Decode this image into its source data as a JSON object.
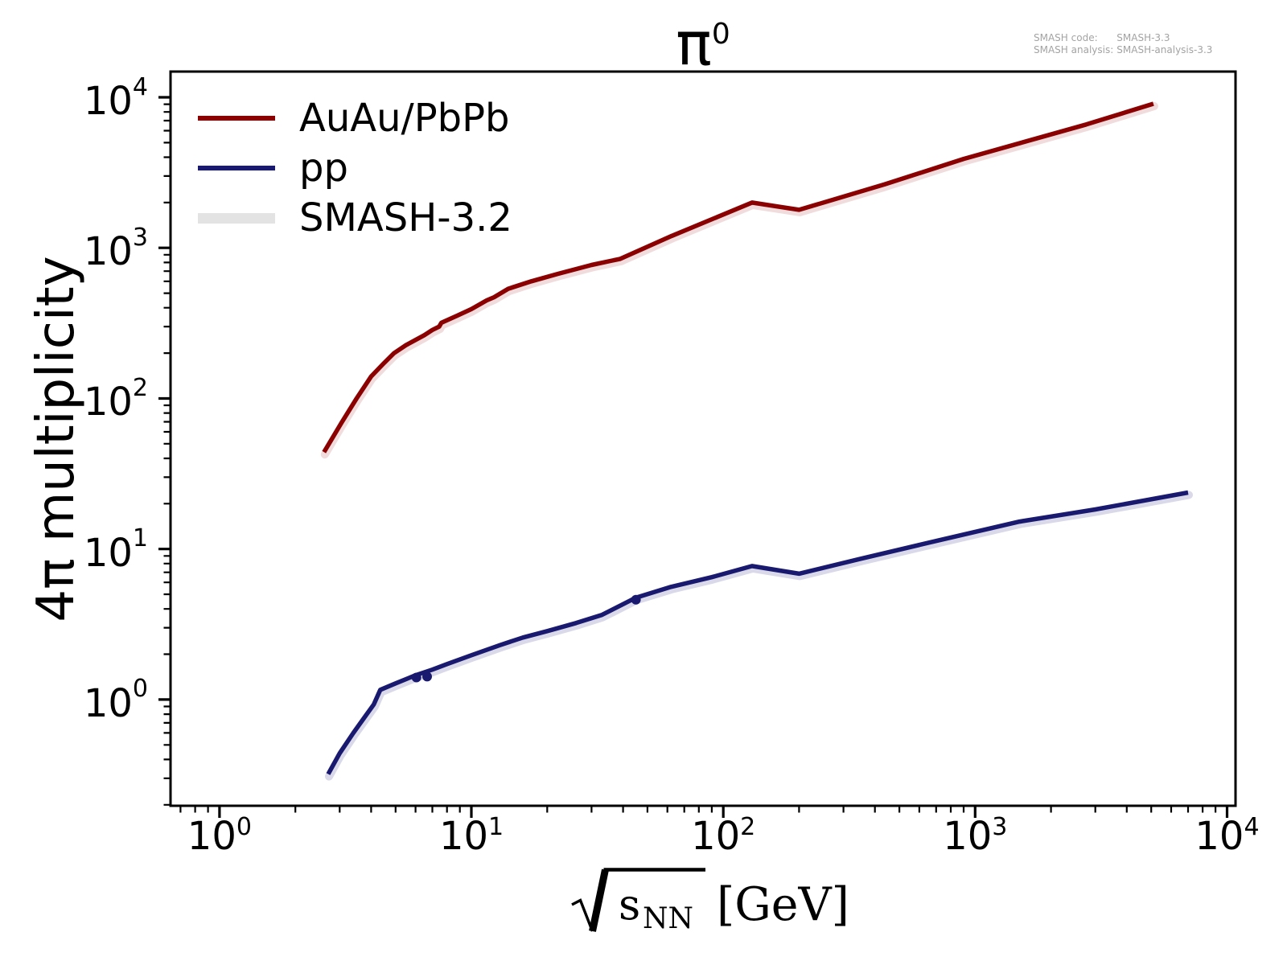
{
  "title": {
    "base": "π",
    "sup": "0"
  },
  "annotation": {
    "rows": [
      {
        "label": "SMASH code:",
        "value": "SMASH-3.3"
      },
      {
        "label": "SMASH analysis:",
        "value": "SMASH-analysis-3.3"
      }
    ]
  },
  "axis_labels": {
    "y": "4π multiplicity",
    "x_radicand": "s",
    "x_sub": "NN",
    "x_unit": "[GeV]"
  },
  "legend": {
    "items": [
      {
        "label": "AuAu/PbPb",
        "color": "#8b0000",
        "swatch": "line"
      },
      {
        "label": "pp",
        "color": "#191970",
        "swatch": "line"
      },
      {
        "label": "SMASH-3.2",
        "color": "#e3e3e3",
        "swatch": "band"
      }
    ]
  },
  "chart_data": {
    "type": "line",
    "xscale": "log",
    "yscale": "log",
    "xlim": [
      0.639,
      10806
    ],
    "ylim": [
      0.197,
      14825
    ],
    "x_tick_exponents": [
      0,
      1,
      2,
      3,
      4
    ],
    "y_tick_exponents": [
      0,
      1,
      2,
      3,
      4
    ],
    "xlabel": "sqrt(s_NN) [GeV]",
    "ylabel": "4π multiplicity",
    "title": "π0",
    "series": [
      {
        "name": "AuAu/PbPb",
        "color": "#8b0000",
        "band_color": "#f0dcdc",
        "x": [
          2.6,
          3.05,
          3.5,
          4.0,
          4.5,
          4.93,
          5.5,
          6.5,
          7.0,
          7.45,
          7.6,
          8.8,
          10,
          11.5,
          12.3,
          14,
          17.3,
          22,
          30,
          39,
          62.4,
          130,
          200,
          437,
          900,
          2760,
          5100
        ],
        "y": [
          44,
          69,
          100,
          140,
          172,
          200,
          226,
          263,
          285,
          300,
          318,
          355,
          392,
          448,
          470,
          535,
          600,
          672,
          770,
          845,
          1200,
          2000,
          1790,
          2640,
          3900,
          6600,
          9060
        ]
      },
      {
        "name": "pp",
        "color": "#191970",
        "band_color": "#d9d9e9",
        "x": [
          2.7,
          3.0,
          3.4,
          3.8,
          4.1,
          4.35,
          5.0,
          6.0,
          7.0,
          8.0,
          10,
          13,
          16,
          20,
          26,
          33,
          45,
          62,
          90,
          130,
          200,
          350,
          700,
          1500,
          3000,
          7000
        ],
        "y": [
          0.32,
          0.44,
          0.6,
          0.78,
          0.93,
          1.16,
          1.28,
          1.45,
          1.58,
          1.72,
          1.97,
          2.3,
          2.58,
          2.85,
          3.22,
          3.65,
          4.75,
          5.6,
          6.5,
          7.7,
          6.85,
          8.6,
          11.3,
          15.2,
          18.3,
          23.7
        ]
      }
    ],
    "markers": {
      "color": "#191970",
      "radius": 6,
      "points": [
        {
          "x": 6.05,
          "y": 1.4
        },
        {
          "x": 6.67,
          "y": 1.42
        },
        {
          "x": 45,
          "y": 4.6
        }
      ]
    },
    "band_name": "SMASH-3.2",
    "band_offset": [
      1,
      3
    ],
    "legend_position": "upper left",
    "grid": false
  }
}
